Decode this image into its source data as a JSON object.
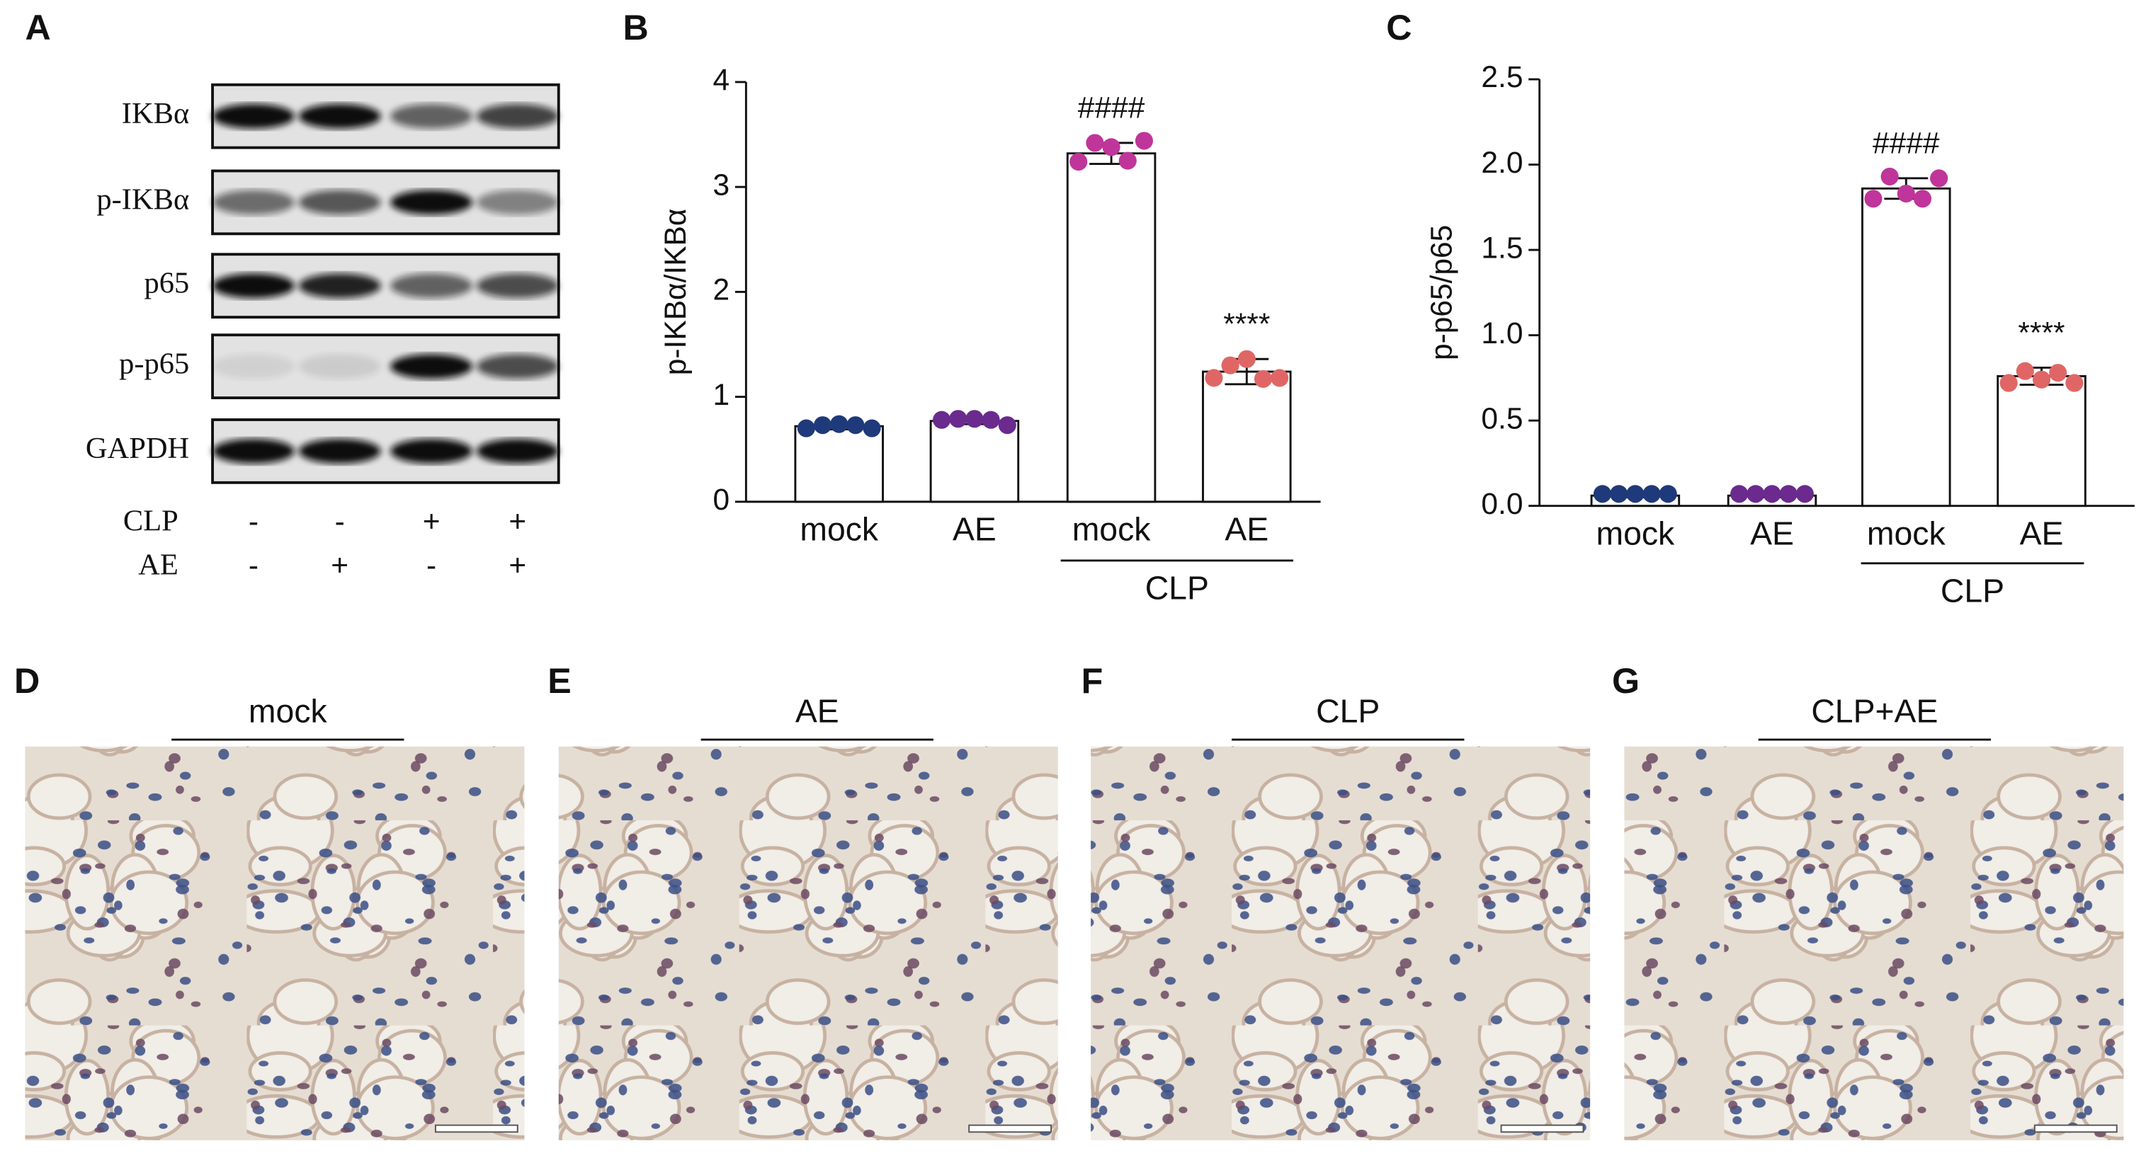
{
  "panel_labels": [
    "A",
    "B",
    "C",
    "D",
    "E",
    "F",
    "G"
  ],
  "blot": {
    "rows": [
      "IKBα",
      "p-IKBα",
      "p65",
      "p-p65",
      "GAPDH"
    ],
    "conditions": [
      {
        "name": "CLP",
        "signs": [
          "-",
          "-",
          "+",
          "+"
        ]
      },
      {
        "name": "AE",
        "signs": [
          "-",
          "+",
          "-",
          "+"
        ]
      }
    ]
  },
  "histology": [
    "mock",
    "AE",
    "CLP",
    "CLP+AE"
  ],
  "chart_data": [
    {
      "type": "bar",
      "y_label": "p-IKBα/IKBα",
      "categories": [
        "mock",
        "AE",
        "mock",
        "AE"
      ],
      "group_label": "CLP",
      "values": [
        0.72,
        0.77,
        3.32,
        1.24
      ],
      "errors": [
        0.03,
        0.03,
        0.1,
        0.12
      ],
      "points": [
        [
          0.7,
          0.73,
          0.74,
          0.73,
          0.7
        ],
        [
          0.78,
          0.79,
          0.79,
          0.78,
          0.73
        ],
        [
          3.24,
          3.42,
          3.38,
          3.25,
          3.44
        ],
        [
          1.18,
          1.3,
          1.36,
          1.17,
          1.18
        ]
      ],
      "colors": [
        "#1f3a7a",
        "#6a2a8e",
        "#c0359a",
        "#e06666"
      ],
      "significance": [
        null,
        null,
        "####",
        "****"
      ],
      "ylim": [
        0,
        4
      ],
      "yticks": [
        0,
        1,
        2,
        3,
        4
      ]
    },
    {
      "type": "bar",
      "y_label": "p-p65/p65",
      "categories": [
        "mock",
        "AE",
        "mock",
        "AE"
      ],
      "group_label": "CLP",
      "values": [
        0.06,
        0.06,
        1.86,
        0.76
      ],
      "errors": [
        0.01,
        0.01,
        0.06,
        0.05
      ],
      "points": [
        [
          0.07,
          0.07,
          0.07,
          0.07,
          0.07
        ],
        [
          0.07,
          0.07,
          0.07,
          0.07,
          0.07
        ],
        [
          1.8,
          1.93,
          1.83,
          1.8,
          1.92
        ],
        [
          0.72,
          0.79,
          0.74,
          0.78,
          0.72
        ]
      ],
      "colors": [
        "#1f3a7a",
        "#6a2a8e",
        "#c0359a",
        "#e06666"
      ],
      "significance": [
        null,
        null,
        "####",
        "****"
      ],
      "ylim": [
        0,
        2.5
      ],
      "yticks": [
        {
          "value": 0,
          "label": "0.0"
        },
        0.5,
        {
          "value": 1,
          "label": "1.0"
        },
        1.5,
        {
          "value": 2,
          "label": "2.0"
        },
        2.5
      ]
    }
  ]
}
